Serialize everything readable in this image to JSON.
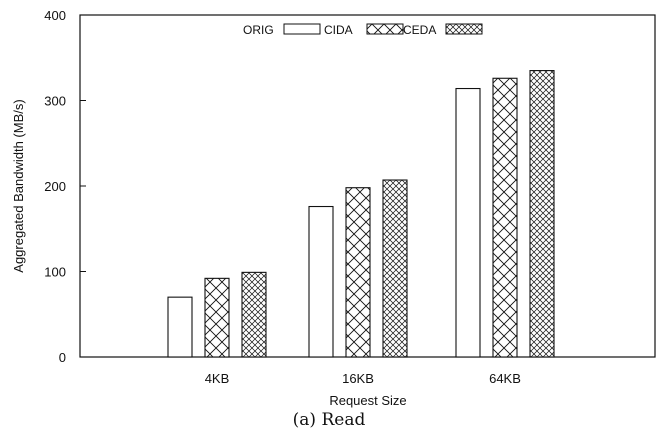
{
  "chart_data": {
    "type": "bar",
    "title": "",
    "xlabel": "Request Size",
    "ylabel": "Aggregated Bandwidth (MB/s)",
    "categories": [
      "4KB",
      "16KB",
      "64KB"
    ],
    "series": [
      {
        "name": "ORIG",
        "values": [
          70,
          176,
          314
        ],
        "pattern": "none"
      },
      {
        "name": "CIDA",
        "values": [
          92,
          198,
          326
        ],
        "pattern": "coarse-crosshatch"
      },
      {
        "name": "CEDA",
        "values": [
          99,
          207,
          335
        ],
        "pattern": "fine-crosshatch"
      }
    ],
    "ylim": [
      0,
      400
    ],
    "yticks": [
      0,
      100,
      200,
      300,
      400
    ],
    "grid": false,
    "legend": "top-center"
  },
  "caption": "(a) Read"
}
